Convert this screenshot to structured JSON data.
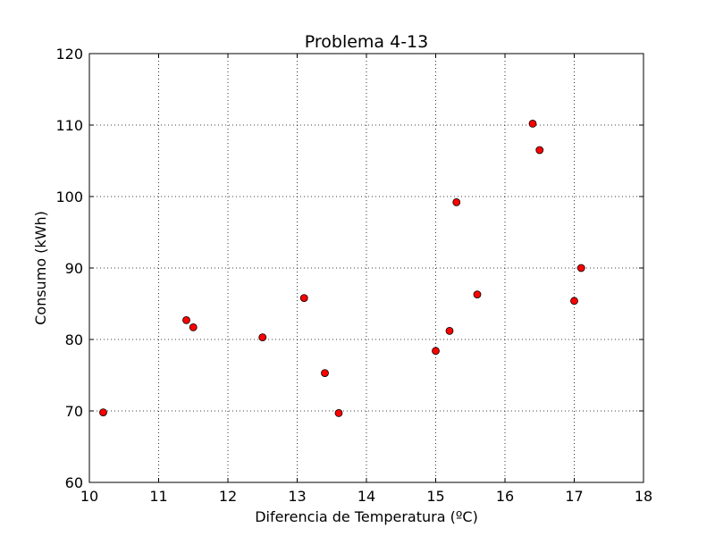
{
  "chart_data": {
    "type": "scatter",
    "title": "Problema 4-13",
    "xlabel": "Diferencia de Temperatura (ºC)",
    "ylabel": "Consumo (kWh)",
    "xlim": [
      10,
      18
    ],
    "ylim": [
      60,
      120
    ],
    "xticks": [
      "10",
      "11",
      "12",
      "13",
      "14",
      "15",
      "16",
      "17",
      "18"
    ],
    "yticks": [
      "60",
      "70",
      "80",
      "90",
      "100",
      "110",
      "120"
    ],
    "grid": true,
    "marker_color": "#ff0000",
    "marker_edge_color": "#000000",
    "points": [
      {
        "x": 10.2,
        "y": 69.8
      },
      {
        "x": 11.4,
        "y": 82.7
      },
      {
        "x": 11.5,
        "y": 81.7
      },
      {
        "x": 12.5,
        "y": 80.3
      },
      {
        "x": 13.1,
        "y": 85.8
      },
      {
        "x": 13.4,
        "y": 75.3
      },
      {
        "x": 13.6,
        "y": 69.7
      },
      {
        "x": 15.0,
        "y": 78.4
      },
      {
        "x": 15.2,
        "y": 81.2
      },
      {
        "x": 15.3,
        "y": 99.2
      },
      {
        "x": 15.6,
        "y": 86.3
      },
      {
        "x": 16.4,
        "y": 110.2
      },
      {
        "x": 16.5,
        "y": 106.5
      },
      {
        "x": 17.0,
        "y": 85.4
      },
      {
        "x": 17.1,
        "y": 90.0
      }
    ]
  }
}
